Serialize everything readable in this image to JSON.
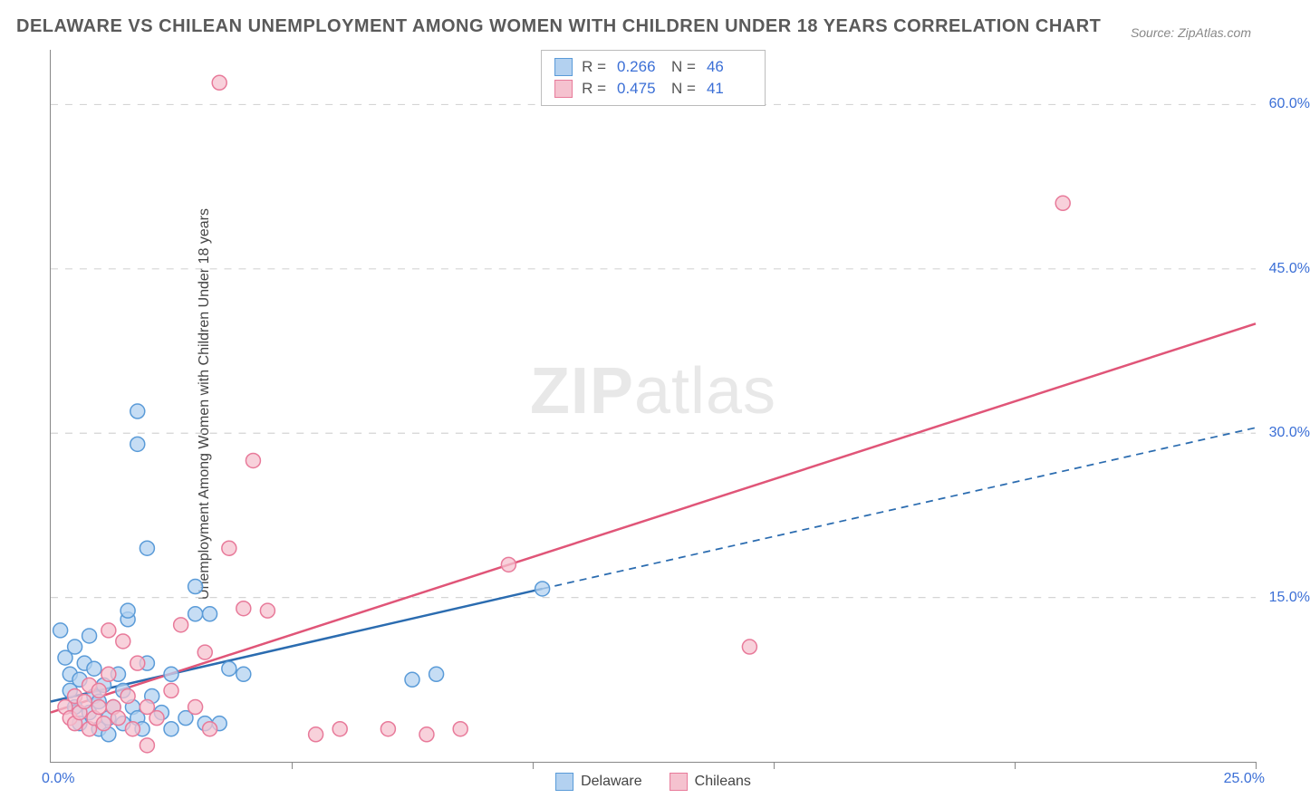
{
  "title": "DELAWARE VS CHILEAN UNEMPLOYMENT AMONG WOMEN WITH CHILDREN UNDER 18 YEARS CORRELATION CHART",
  "source": "Source: ZipAtlas.com",
  "y_axis_label": "Unemployment Among Women with Children Under 18 years",
  "watermark_bold": "ZIP",
  "watermark_rest": "atlas",
  "chart": {
    "type": "scatter",
    "xlim": [
      0,
      25
    ],
    "ylim": [
      0,
      65
    ],
    "x_ticks": [
      0,
      5,
      10,
      15,
      20,
      25
    ],
    "y_gridlines": [
      15,
      30,
      45,
      60
    ],
    "y_tick_labels": [
      "15.0%",
      "30.0%",
      "45.0%",
      "60.0%"
    ],
    "x_zero_label": "0.0%",
    "x_max_label": "25.0%",
    "background_color": "#ffffff",
    "grid_color": "#d5d5d5",
    "axis_color": "#888888",
    "marker_radius": 8,
    "marker_stroke_width": 1.5,
    "line_width": 2.5,
    "series": [
      {
        "name": "Delaware",
        "fill": "#b3d1f0",
        "stroke": "#5a9bd8",
        "line_color": "#2b6cb0",
        "R": "0.266",
        "N": "46",
        "trend": {
          "x1": 0,
          "y1": 5.5,
          "x2": 10.2,
          "y2": 15.8,
          "dash_x2": 25,
          "dash_y2": 30.5
        },
        "points": [
          [
            0.2,
            12
          ],
          [
            0.3,
            9.5
          ],
          [
            0.4,
            8
          ],
          [
            0.4,
            6.5
          ],
          [
            0.5,
            10.5
          ],
          [
            0.5,
            5
          ],
          [
            0.6,
            7.5
          ],
          [
            0.6,
            3.5
          ],
          [
            0.7,
            9
          ],
          [
            0.8,
            11.5
          ],
          [
            0.8,
            4.5
          ],
          [
            0.9,
            6
          ],
          [
            0.9,
            8.5
          ],
          [
            1.0,
            3
          ],
          [
            1.0,
            5.5
          ],
          [
            1.1,
            7
          ],
          [
            1.2,
            4
          ],
          [
            1.2,
            2.5
          ],
          [
            1.3,
            5
          ],
          [
            1.4,
            8
          ],
          [
            1.5,
            3.5
          ],
          [
            1.5,
            6.5
          ],
          [
            1.6,
            13
          ],
          [
            1.6,
            13.8
          ],
          [
            1.7,
            5
          ],
          [
            1.8,
            4
          ],
          [
            1.8,
            29
          ],
          [
            1.8,
            32
          ],
          [
            1.9,
            3
          ],
          [
            2.0,
            9
          ],
          [
            2.0,
            19.5
          ],
          [
            2.1,
            6
          ],
          [
            2.3,
            4.5
          ],
          [
            2.5,
            3
          ],
          [
            2.5,
            8
          ],
          [
            2.8,
            4
          ],
          [
            3.0,
            13.5
          ],
          [
            3.0,
            16
          ],
          [
            3.2,
            3.5
          ],
          [
            3.3,
            13.5
          ],
          [
            3.5,
            3.5
          ],
          [
            3.7,
            8.5
          ],
          [
            4.0,
            8
          ],
          [
            7.5,
            7.5
          ],
          [
            8.0,
            8
          ],
          [
            10.2,
            15.8
          ]
        ]
      },
      {
        "name": "Chileans",
        "fill": "#f5c2cf",
        "stroke": "#e87a9a",
        "line_color": "#e05578",
        "R": "0.475",
        "N": "41",
        "trend": {
          "x1": 0,
          "y1": 4.5,
          "x2": 25,
          "y2": 40
        },
        "points": [
          [
            0.3,
            5
          ],
          [
            0.4,
            4
          ],
          [
            0.5,
            3.5
          ],
          [
            0.5,
            6
          ],
          [
            0.6,
            4.5
          ],
          [
            0.7,
            5.5
          ],
          [
            0.8,
            3
          ],
          [
            0.8,
            7
          ],
          [
            0.9,
            4
          ],
          [
            1.0,
            5
          ],
          [
            1.0,
            6.5
          ],
          [
            1.1,
            3.5
          ],
          [
            1.2,
            8
          ],
          [
            1.2,
            12
          ],
          [
            1.3,
            5
          ],
          [
            1.4,
            4
          ],
          [
            1.5,
            11
          ],
          [
            1.6,
            6
          ],
          [
            1.7,
            3
          ],
          [
            1.8,
            9
          ],
          [
            2.0,
            5
          ],
          [
            2.0,
            1.5
          ],
          [
            2.2,
            4
          ],
          [
            2.5,
            6.5
          ],
          [
            2.7,
            12.5
          ],
          [
            3.0,
            5
          ],
          [
            3.2,
            10
          ],
          [
            3.3,
            3
          ],
          [
            3.5,
            62
          ],
          [
            3.7,
            19.5
          ],
          [
            4.0,
            14
          ],
          [
            4.2,
            27.5
          ],
          [
            4.5,
            13.8
          ],
          [
            5.5,
            2.5
          ],
          [
            6.0,
            3
          ],
          [
            7.0,
            3
          ],
          [
            7.8,
            2.5
          ],
          [
            8.5,
            3
          ],
          [
            9.5,
            18
          ],
          [
            14.5,
            10.5
          ],
          [
            21,
            51
          ]
        ]
      }
    ]
  },
  "legend": {
    "series1": "Delaware",
    "series2": "Chileans"
  },
  "stats_labels": {
    "R": "R =",
    "N": "N ="
  }
}
